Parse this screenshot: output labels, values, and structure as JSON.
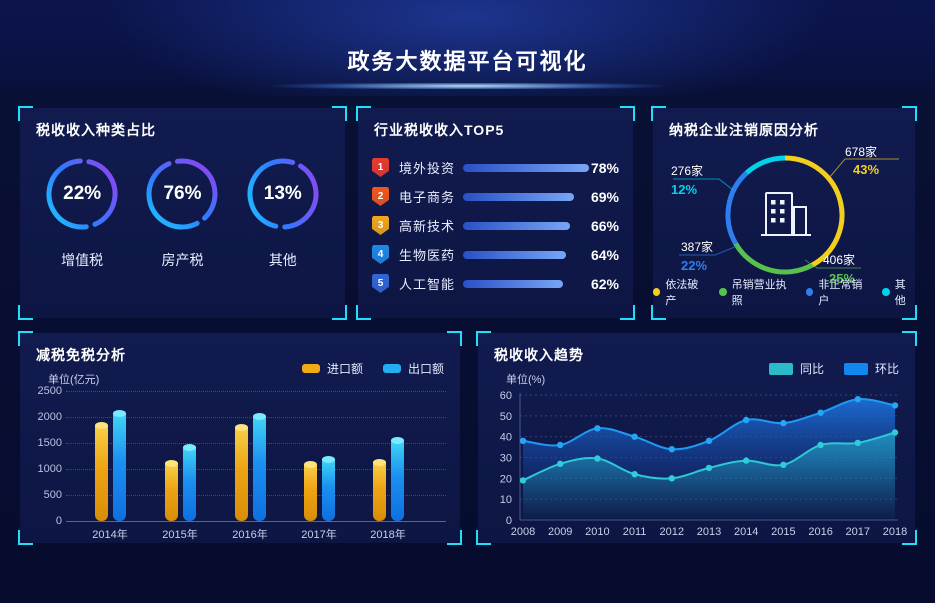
{
  "header": {
    "title": "政务大数据平台可视化"
  },
  "colors": {
    "corner_accent": "#1fe0f8",
    "background": "#070c2e",
    "panel_background": "#101a4c"
  },
  "panels": {
    "tax_type": {
      "title": "税收收入种类占比"
    },
    "industry_top5": {
      "title": "行业税收收入TOP5"
    },
    "cancellation": {
      "title": "纳税企业注销原因分析"
    },
    "reduction": {
      "title": "减税免税分析",
      "unit": "单位(亿元)"
    },
    "trend": {
      "title": "税收收入趋势",
      "unit": "单位(%)"
    }
  },
  "chart_data": [
    {
      "type": "pie",
      "subtype": "donut-set",
      "title": "税收收入种类占比",
      "items": [
        {
          "label": "增值税",
          "value": 22,
          "display": "22%"
        },
        {
          "label": "房产税",
          "value": 76,
          "display": "76%"
        },
        {
          "label": "其他",
          "value": 13,
          "display": "13%"
        }
      ],
      "ring_gradient": [
        "#1ec8ff",
        "#2f7bff",
        "#9b3df0"
      ]
    },
    {
      "type": "bar",
      "orientation": "horizontal",
      "title": "行业税收收入TOP5",
      "categories": [
        "境外投资",
        "电子商务",
        "高新技术",
        "生物医药",
        "人工智能"
      ],
      "values": [
        78,
        69,
        66,
        64,
        62
      ],
      "value_labels": [
        "78%",
        "69%",
        "66%",
        "64%",
        "62%"
      ],
      "ranks": [
        "1",
        "2",
        "3",
        "4",
        "5"
      ],
      "badge_colors": [
        "#e93b2f",
        "#f0571f",
        "#f0a71b",
        "#1f88e8",
        "#3366d6"
      ],
      "bar_gradient": [
        "#2a50c6",
        "#78a6f6"
      ]
    },
    {
      "type": "pie",
      "subtype": "donut",
      "title": "纳税企业注销原因分析",
      "labels": [
        "依法破产",
        "吊销营业执照",
        "非正常销户",
        "其他"
      ],
      "values": [
        43,
        25,
        22,
        12
      ],
      "counts": [
        "678家",
        "406家",
        "387家",
        "276家"
      ],
      "percent_labels": [
        "43%",
        "25%",
        "22%",
        "12%"
      ],
      "colors": [
        "#f2cf1c",
        "#57c24b",
        "#2d7ff0",
        "#00d2ea"
      ],
      "center_icon": "building-icon",
      "legend_position": "bottom"
    },
    {
      "type": "bar",
      "title": "减税免税分析",
      "categories": [
        "2014年",
        "2015年",
        "2016年",
        "2017年",
        "2018年"
      ],
      "series": [
        {
          "name": "进口额",
          "color": "#f0ab17",
          "values": [
            1850,
            1110,
            1800,
            1090,
            1130
          ]
        },
        {
          "name": "出口额",
          "color": "#22aef2",
          "values": [
            2080,
            1430,
            2020,
            1200,
            1550
          ]
        }
      ],
      "ylabel": "单位(亿元)",
      "ylim": [
        0,
        2500
      ],
      "yticks": [
        0,
        500,
        1000,
        1500,
        2000,
        2500
      ],
      "grid": "dotted",
      "legend_position": "top-right"
    },
    {
      "type": "area",
      "title": "税收收入趋势",
      "x": [
        "2008",
        "2009",
        "2010",
        "2011",
        "2012",
        "2013",
        "2014",
        "2015",
        "2016",
        "2017",
        "2018"
      ],
      "series": [
        {
          "name": "同比",
          "color": "#2bbac9",
          "values": [
            19,
            27,
            29.5,
            22,
            20,
            25,
            28.5,
            26.5,
            36,
            37,
            42
          ]
        },
        {
          "name": "环比",
          "color": "#1287f0",
          "values": [
            38,
            36,
            44,
            40,
            34,
            38,
            48,
            46.5,
            51.5,
            58,
            55
          ]
        }
      ],
      "ylabel": "单位(%)",
      "ylim": [
        0,
        60
      ],
      "yticks": [
        0,
        10,
        20,
        30,
        40,
        50,
        60
      ],
      "grid": "dotted",
      "legend_position": "top-right"
    }
  ]
}
